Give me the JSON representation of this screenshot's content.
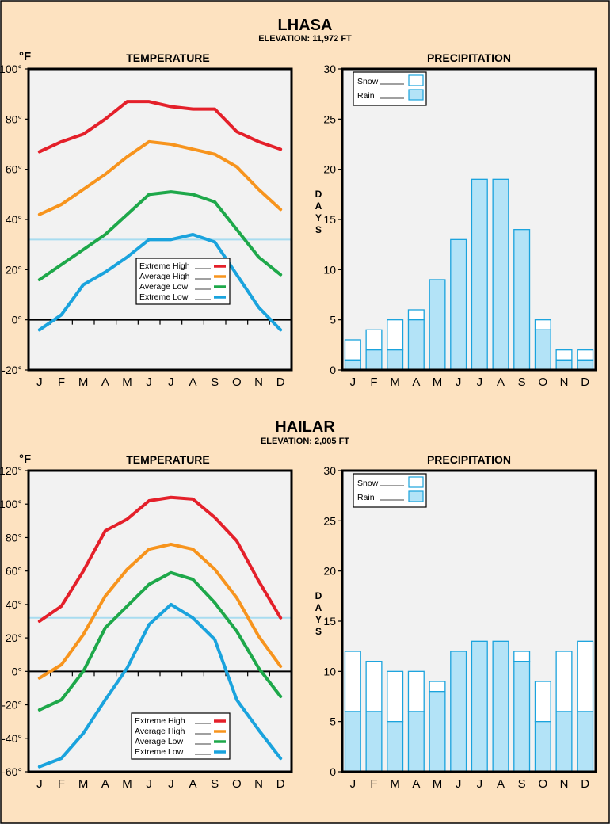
{
  "colors": {
    "background": "#fde2c0",
    "plot_bg": "#f2f2f2",
    "freezing_line": "#a8dcf0",
    "rain_fill": "#b3e3f7",
    "bar_stroke": "#1aa3dd",
    "extreme_high": "#e4202a",
    "average_high": "#f7941d",
    "average_low": "#1ea84a",
    "extreme_low": "#1aa3dd"
  },
  "chart_data": [
    {
      "type": "line",
      "city": "LHASA",
      "elevation": "ELEVATION:  11,972 FT",
      "unit_label": "°F",
      "title": "TEMPERATURE",
      "categories": [
        "J",
        "F",
        "M",
        "A",
        "M",
        "J",
        "J",
        "A",
        "S",
        "O",
        "N",
        "D"
      ],
      "yticks": [
        "100°",
        "80°",
        "60°",
        "40°",
        "20°",
        "0°",
        "-20°"
      ],
      "ylim": [
        -20,
        100
      ],
      "freezing_line": 32,
      "legend": [
        "Extreme High",
        "Average High",
        "Average Low",
        "Extreme Low"
      ],
      "legend_position": "center",
      "series": [
        {
          "name": "Extreme High",
          "color_key": "extreme_high",
          "values": [
            67,
            71,
            74,
            80,
            87,
            87,
            85,
            84,
            84,
            75,
            71,
            68
          ]
        },
        {
          "name": "Average High",
          "color_key": "average_high",
          "values": [
            42,
            46,
            52,
            58,
            65,
            71,
            70,
            68,
            66,
            61,
            52,
            44
          ]
        },
        {
          "name": "Average Low",
          "color_key": "average_low",
          "values": [
            16,
            22,
            28,
            34,
            42,
            50,
            51,
            50,
            47,
            36,
            25,
            18
          ]
        },
        {
          "name": "Extreme Low",
          "color_key": "extreme_low",
          "values": [
            -4,
            2,
            14,
            19,
            25,
            32,
            32,
            34,
            31,
            18,
            5,
            -4
          ]
        }
      ]
    },
    {
      "type": "bar",
      "title": "PRECIPITATION",
      "ylabel": "D A Y S",
      "categories": [
        "J",
        "F",
        "M",
        "A",
        "M",
        "J",
        "J",
        "A",
        "S",
        "O",
        "N",
        "D"
      ],
      "yticks": [
        "30",
        "25",
        "20",
        "15",
        "10",
        "5",
        "0"
      ],
      "ylim": [
        0,
        30
      ],
      "legend": [
        "Snow",
        "Rain"
      ],
      "legend_position": "top-left",
      "series": [
        {
          "name": "Rain",
          "values": [
            1,
            2,
            2,
            5,
            9,
            13,
            19,
            19,
            14,
            4,
            1,
            1
          ]
        },
        {
          "name": "Snow",
          "values": [
            2,
            2,
            3,
            1,
            0,
            0,
            0,
            0,
            0,
            1,
            1,
            1
          ]
        }
      ]
    },
    {
      "type": "line",
      "city": "HAILAR",
      "elevation": "ELEVATION: 2,005 FT",
      "unit_label": "°F",
      "title": "TEMPERATURE",
      "categories": [
        "J",
        "F",
        "M",
        "A",
        "M",
        "J",
        "J",
        "A",
        "S",
        "O",
        "N",
        "D"
      ],
      "yticks": [
        "120°",
        "100°",
        "80°",
        "60°",
        "40°",
        "20°",
        "0°",
        "-20°",
        "-40°",
        "-60°"
      ],
      "ylim": [
        -60,
        120
      ],
      "freezing_line": 32,
      "legend": [
        "Extreme High",
        "Average High",
        "Average Low",
        "Extreme Low"
      ],
      "legend_position": "bottom-center",
      "series": [
        {
          "name": "Extreme High",
          "color_key": "extreme_high",
          "values": [
            30,
            39,
            60,
            84,
            91,
            102,
            104,
            103,
            92,
            78,
            54,
            32
          ]
        },
        {
          "name": "Average High",
          "color_key": "average_high",
          "values": [
            -4,
            4,
            22,
            45,
            61,
            73,
            76,
            73,
            61,
            44,
            21,
            3
          ]
        },
        {
          "name": "Average Low",
          "color_key": "average_low",
          "values": [
            -23,
            -17,
            0,
            26,
            39,
            52,
            59,
            55,
            41,
            24,
            2,
            -15
          ]
        },
        {
          "name": "Extreme Low",
          "color_key": "extreme_low",
          "values": [
            -57,
            -52,
            -37,
            -17,
            2,
            28,
            40,
            32,
            19,
            -17,
            -35,
            -52
          ]
        }
      ]
    },
    {
      "type": "bar",
      "title": "PRECIPITATION",
      "ylabel": "D A Y S",
      "categories": [
        "J",
        "F",
        "M",
        "A",
        "M",
        "J",
        "J",
        "A",
        "S",
        "O",
        "N",
        "D"
      ],
      "yticks": [
        "30",
        "25",
        "20",
        "15",
        "10",
        "5",
        "0"
      ],
      "ylim": [
        0,
        30
      ],
      "legend": [
        "Snow",
        "Rain"
      ],
      "legend_position": "top-left",
      "series": [
        {
          "name": "Rain",
          "values": [
            6,
            6,
            5,
            6,
            8,
            12,
            13,
            13,
            11,
            5,
            6,
            6
          ]
        },
        {
          "name": "Snow",
          "values": [
            6,
            5,
            5,
            4,
            1,
            0,
            0,
            0,
            1,
            4,
            6,
            7
          ]
        }
      ]
    }
  ]
}
